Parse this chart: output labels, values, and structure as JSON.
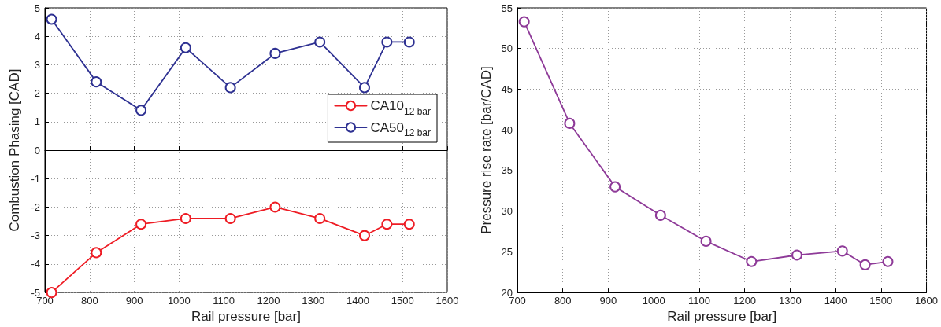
{
  "chart_data": [
    {
      "type": "line",
      "xlabel": "Rail pressure [bar]",
      "ylabel": "Combustion Phasing [CAD]",
      "x": [
        715,
        815,
        915,
        1015,
        1115,
        1215,
        1315,
        1415,
        1465,
        1515
      ],
      "series": [
        {
          "name": "CA10$_{12 bar}$",
          "color": "#ee1c24",
          "values": [
            -5,
            -3.6,
            -2.6,
            -2.4,
            -2.4,
            -2.0,
            -2.4,
            -3.0,
            -2.6,
            -2.6
          ]
        },
        {
          "name": "CA50$_{12 bar}$",
          "color": "#2e3192",
          "values": [
            4.6,
            2.4,
            1.4,
            3.6,
            2.2,
            3.4,
            3.8,
            2.2,
            3.8,
            3.8
          ]
        }
      ],
      "xlim": [
        700,
        1600
      ],
      "xticks": [
        700,
        800,
        900,
        1000,
        1100,
        1200,
        1300,
        1400,
        1500,
        1600
      ],
      "ylim": [
        -5,
        5
      ],
      "yticks": [
        -5,
        -4,
        -3,
        -2,
        -1,
        0,
        1,
        2,
        3,
        4,
        5
      ],
      "grid": true,
      "legend": "right",
      "marker": "circle",
      "line_style": "solid"
    },
    {
      "type": "line",
      "xlabel": "Rail pressure [bar]",
      "ylabel": "Pressure rise rate [bar/CAD]",
      "x": [
        715,
        815,
        915,
        1015,
        1115,
        1215,
        1315,
        1415,
        1465,
        1515
      ],
      "series": [
        {
          "color": "#8e3a98",
          "values": [
            53.3,
            40.8,
            33.0,
            29.5,
            26.3,
            23.8,
            24.6,
            25.1,
            23.4,
            23.8
          ]
        }
      ],
      "xlim": [
        700,
        1600
      ],
      "xticks": [
        700,
        800,
        900,
        1000,
        1100,
        1200,
        1300,
        1400,
        1500,
        1600
      ],
      "ylim": [
        20,
        55
      ],
      "yticks": [
        20,
        25,
        30,
        35,
        40,
        45,
        50,
        55
      ],
      "grid": true,
      "marker": "circle",
      "line_style": "solid"
    }
  ]
}
